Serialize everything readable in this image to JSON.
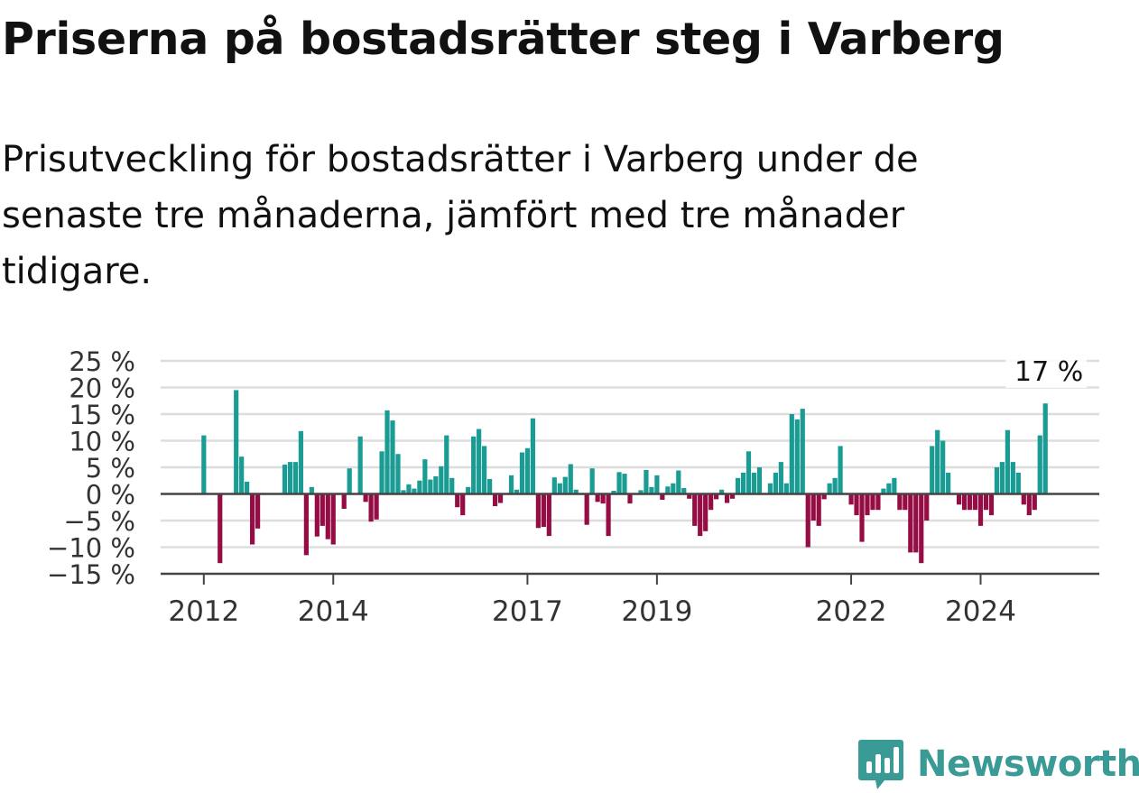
{
  "title": "Priserna på bostadsrätter steg i Varberg",
  "subtitle": "Prisutveckling för bostadsrätter i Varberg under de senaste tre månaderna, jämfört med tre månader tidigare.",
  "brand": {
    "name": "Newsworthy",
    "icon": "newsworthy-logo-icon",
    "color": "#3a9b96"
  },
  "colors": {
    "positive": "#1a9c94",
    "negative": "#960d45",
    "grid": "#dddddd",
    "axis": "#444444"
  },
  "chart_data": {
    "type": "bar",
    "title": "Priserna på bostadsrätter steg i Varberg",
    "subtitle": "Prisutveckling för bostadsrätter i Varberg under de senaste tre månaderna, jämfört med tre månader tidigare.",
    "ylabel": "",
    "xlabel": "",
    "unit": "%",
    "ylim": [
      -15,
      25
    ],
    "yticks": [
      25,
      20,
      15,
      10,
      5,
      0,
      -5,
      -10,
      -15
    ],
    "ytick_labels": [
      "25 %",
      "20 %",
      "15 %",
      "10 %",
      "5 %",
      "0 %",
      "−5 %",
      "−10 %",
      "−15 %"
    ],
    "xlim": [
      "2011-05",
      "2025-11"
    ],
    "xticks": [
      {
        "date": "2012-01",
        "label": "2012"
      },
      {
        "date": "2014-01",
        "label": "2014"
      },
      {
        "date": "2017-01",
        "label": "2017"
      },
      {
        "date": "2019-01",
        "label": "2019"
      },
      {
        "date": "2022-01",
        "label": "2022"
      },
      {
        "date": "2024-01",
        "label": "2024"
      }
    ],
    "grid": true,
    "annotation": {
      "date": "2025-01",
      "label": "17 %"
    },
    "dates": [
      "2012-01",
      "2012-02",
      "2012-03",
      "2012-04",
      "2012-05",
      "2012-06",
      "2012-07",
      "2012-08",
      "2012-09",
      "2012-10",
      "2012-11",
      "2012-12",
      "2013-01",
      "2013-02",
      "2013-03",
      "2013-04",
      "2013-05",
      "2013-06",
      "2013-07",
      "2013-08",
      "2013-09",
      "2013-10",
      "2013-11",
      "2013-12",
      "2014-01",
      "2014-02",
      "2014-03",
      "2014-04",
      "2014-05",
      "2014-06",
      "2014-07",
      "2014-08",
      "2014-09",
      "2014-10",
      "2014-11",
      "2014-12",
      "2015-01",
      "2015-02",
      "2015-03",
      "2015-04",
      "2015-05",
      "2015-06",
      "2015-07",
      "2015-08",
      "2015-09",
      "2015-10",
      "2015-11",
      "2015-12",
      "2016-01",
      "2016-02",
      "2016-03",
      "2016-04",
      "2016-05",
      "2016-06",
      "2016-07",
      "2016-08",
      "2016-09",
      "2016-10",
      "2016-11",
      "2016-12",
      "2017-01",
      "2017-02",
      "2017-03",
      "2017-04",
      "2017-05",
      "2017-06",
      "2017-07",
      "2017-08",
      "2017-09",
      "2017-10",
      "2017-11",
      "2017-12",
      "2018-01",
      "2018-02",
      "2018-03",
      "2018-04",
      "2018-05",
      "2018-06",
      "2018-07",
      "2018-08",
      "2018-09",
      "2018-10",
      "2018-11",
      "2018-12",
      "2019-01",
      "2019-02",
      "2019-03",
      "2019-04",
      "2019-05",
      "2019-06",
      "2019-07",
      "2019-08",
      "2019-09",
      "2019-10",
      "2019-11",
      "2019-12",
      "2020-01",
      "2020-02",
      "2020-03",
      "2020-04",
      "2020-05",
      "2020-06",
      "2020-07",
      "2020-08",
      "2020-09",
      "2020-10",
      "2020-11",
      "2020-12",
      "2021-01",
      "2021-02",
      "2021-03",
      "2021-04",
      "2021-05",
      "2021-06",
      "2021-07",
      "2021-08",
      "2021-09",
      "2021-10",
      "2021-11",
      "2021-12",
      "2022-01",
      "2022-02",
      "2022-03",
      "2022-04",
      "2022-05",
      "2022-06",
      "2022-07",
      "2022-08",
      "2022-09",
      "2022-10",
      "2022-11",
      "2022-12",
      "2023-01",
      "2023-02",
      "2023-03",
      "2023-04",
      "2023-05",
      "2023-06",
      "2023-07",
      "2023-08",
      "2023-09",
      "2023-10",
      "2023-11",
      "2023-12",
      "2024-01",
      "2024-02",
      "2024-03",
      "2024-04",
      "2024-05",
      "2024-06",
      "2024-07",
      "2024-08",
      "2024-09",
      "2024-10",
      "2024-11",
      "2024-12",
      "2025-01"
    ],
    "values": [
      11,
      null,
      null,
      -13,
      null,
      null,
      19.5,
      7,
      2.3,
      -9.5,
      -6.5,
      null,
      null,
      null,
      null,
      5.5,
      6,
      6,
      11.8,
      -11.5,
      1.3,
      -8,
      -6,
      -8.5,
      -9.5,
      null,
      -2.8,
      4.8,
      null,
      10.8,
      -1.5,
      -5.2,
      -4.8,
      8,
      15.7,
      13.8,
      7.5,
      0.7,
      1.8,
      1,
      2.5,
      6.5,
      2.7,
      3.3,
      5.2,
      11,
      3,
      -2.5,
      -4,
      1.3,
      10.8,
      12.2,
      9,
      2.8,
      -2.3,
      -1.7,
      null,
      3.5,
      0.8,
      7.8,
      8.6,
      14.2,
      -6.4,
      -6.2,
      -7.9,
      3.1,
      2,
      3.2,
      5.6,
      0.8,
      null,
      -5.8,
      4.8,
      -1.5,
      -1.8,
      -7.9,
      0.6,
      4.1,
      3.8,
      -1.8,
      null,
      0.7,
      4.5,
      1.3,
      3.5,
      -1.1,
      1.4,
      2,
      4.4,
      1.1,
      -0.9,
      -6,
      -7.9,
      -7,
      -3,
      -1,
      0.8,
      -1.7,
      -0.9,
      3,
      4,
      8,
      4,
      5,
      null,
      2,
      4,
      6,
      2,
      15,
      14,
      16,
      -10,
      -5,
      -6,
      -1,
      2,
      3,
      9,
      null,
      -2,
      -4,
      -9,
      -4,
      -3,
      -3,
      1,
      2,
      3,
      -3,
      -3,
      -11,
      -11,
      -13,
      -5,
      9,
      12,
      10,
      4,
      null,
      -2,
      -3,
      -3,
      -3,
      -6,
      -3,
      -4,
      5,
      6,
      12,
      6,
      4,
      -2,
      -4,
      -3,
      11,
      17
    ]
  }
}
